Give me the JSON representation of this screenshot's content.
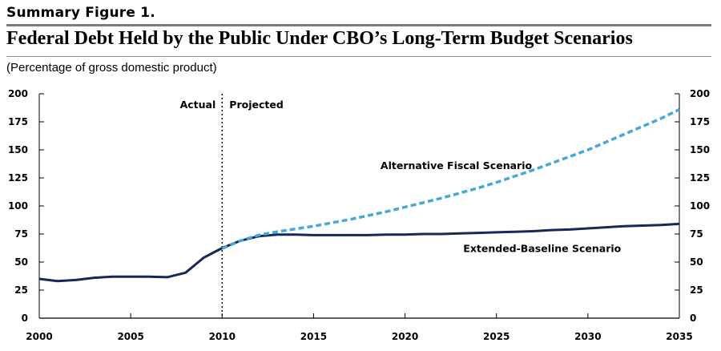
{
  "header": {
    "kicker": "Summary Figure 1.",
    "title": "Federal Debt Held by the Public Under CBO’s Long-Term Budget Scenarios",
    "subtitle": "(Percentage of gross domestic product)"
  },
  "chart_data": {
    "type": "line",
    "xlim": [
      2000,
      2035
    ],
    "ylim": [
      0,
      200
    ],
    "x_ticks": [
      2000,
      2005,
      2010,
      2015,
      2020,
      2025,
      2030,
      2035
    ],
    "y_ticks": [
      0,
      25,
      50,
      75,
      100,
      125,
      150,
      175,
      200
    ],
    "y_axis_both_sides": true,
    "grid": false,
    "divider": {
      "x": 2010,
      "left_label": "Actual",
      "right_label": "Projected"
    },
    "series": [
      {
        "name": "Extended-Baseline Scenario",
        "color": "#14285a",
        "style": "solid",
        "x": [
          2000,
          2001,
          2002,
          2003,
          2004,
          2005,
          2006,
          2007,
          2008,
          2009,
          2010,
          2011,
          2012,
          2013,
          2014,
          2015,
          2016,
          2017,
          2018,
          2019,
          2020,
          2021,
          2022,
          2023,
          2024,
          2025,
          2026,
          2027,
          2028,
          2029,
          2030,
          2031,
          2032,
          2033,
          2034,
          2035
        ],
        "values": [
          35,
          33,
          34,
          36,
          37,
          37,
          37,
          36.5,
          40.5,
          54,
          62.5,
          69,
          73,
          74.5,
          74.5,
          74,
          74,
          74,
          74,
          74.5,
          74.5,
          75,
          75,
          75.5,
          76,
          76.5,
          77,
          77.5,
          78.5,
          79,
          80,
          81,
          82,
          82.5,
          83,
          84
        ]
      },
      {
        "name": "Alternative Fiscal Scenario",
        "color": "#45a8d8",
        "style": "dashed",
        "x": [
          2010,
          2011,
          2012,
          2013,
          2014,
          2015,
          2016,
          2017,
          2018,
          2019,
          2020,
          2021,
          2022,
          2023,
          2024,
          2025,
          2026,
          2027,
          2028,
          2029,
          2030,
          2031,
          2032,
          2033,
          2034,
          2035
        ],
        "values": [
          62,
          69,
          74,
          77,
          79.5,
          82,
          85,
          88,
          91.5,
          95,
          99,
          103,
          107,
          111.5,
          116,
          121,
          126.5,
          132,
          138,
          144,
          150,
          157,
          164,
          171,
          178,
          186
        ]
      }
    ],
    "annotations": [
      {
        "text": "Alternative Fiscal Scenario",
        "x": 2022.8,
        "y": 133
      },
      {
        "text": "Extended-Baseline Scenario",
        "x": 2027.5,
        "y": 59
      }
    ]
  }
}
